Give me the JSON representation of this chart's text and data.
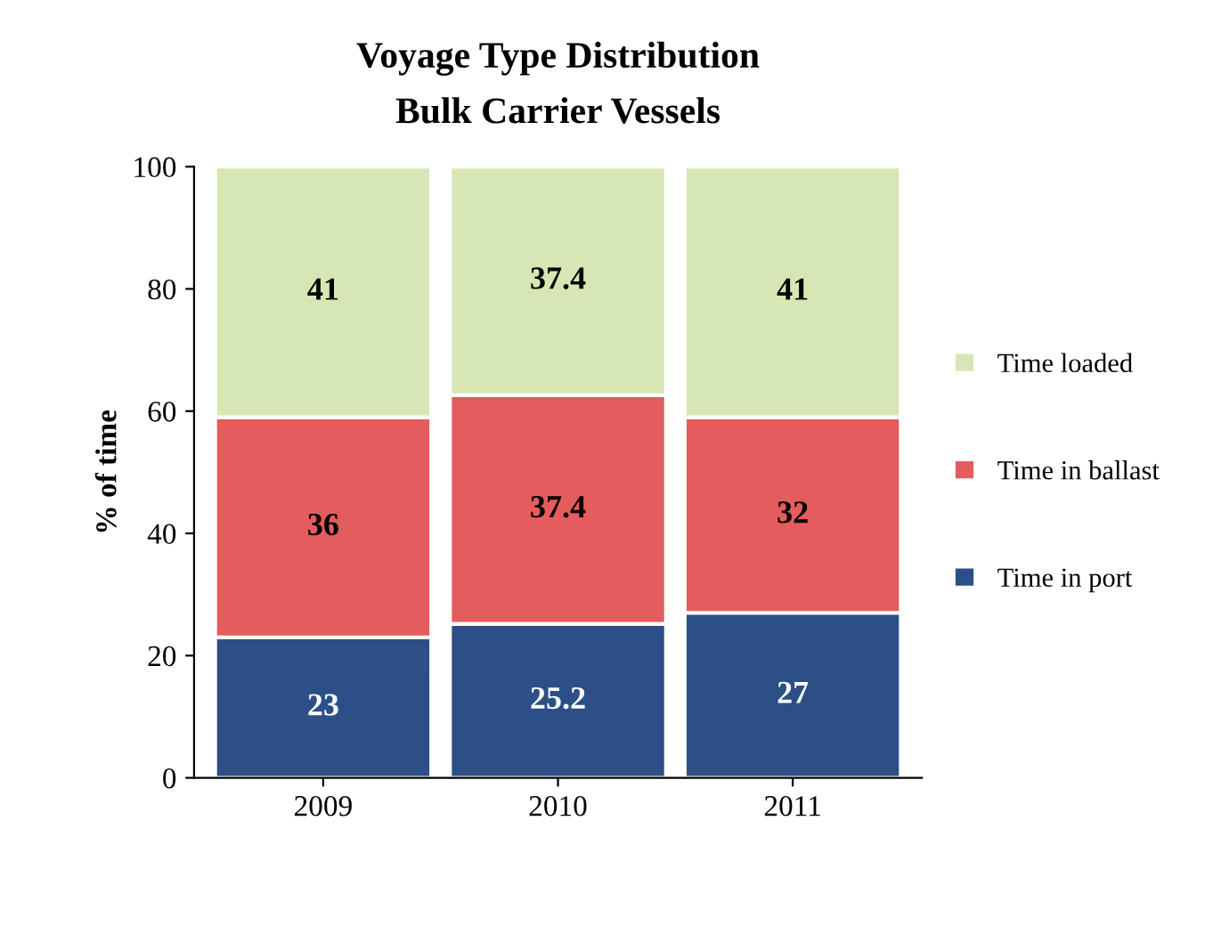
{
  "chart_data": {
    "type": "bar",
    "title": "Voyage Type Distribution",
    "subtitle": "Bulk Carrier Vessels",
    "ylabel": "% of time",
    "categories": [
      "2009",
      "2010",
      "2011"
    ],
    "stacked": true,
    "data_labels": true,
    "legend": "right",
    "grid": false,
    "ylim": [
      0,
      100
    ],
    "yticks": [
      0,
      20,
      40,
      60,
      80,
      100
    ],
    "series": [
      {
        "name": "Time in port",
        "color": "#2b4f86",
        "values": [
          23,
          25.2,
          27
        ]
      },
      {
        "name": "Time in ballast",
        "color": "#e45c5c",
        "values": [
          36,
          37.4,
          32
        ]
      },
      {
        "name": "Time loaded",
        "color": "#d7e7b3",
        "values": [
          41,
          37.4,
          41
        ]
      }
    ]
  }
}
